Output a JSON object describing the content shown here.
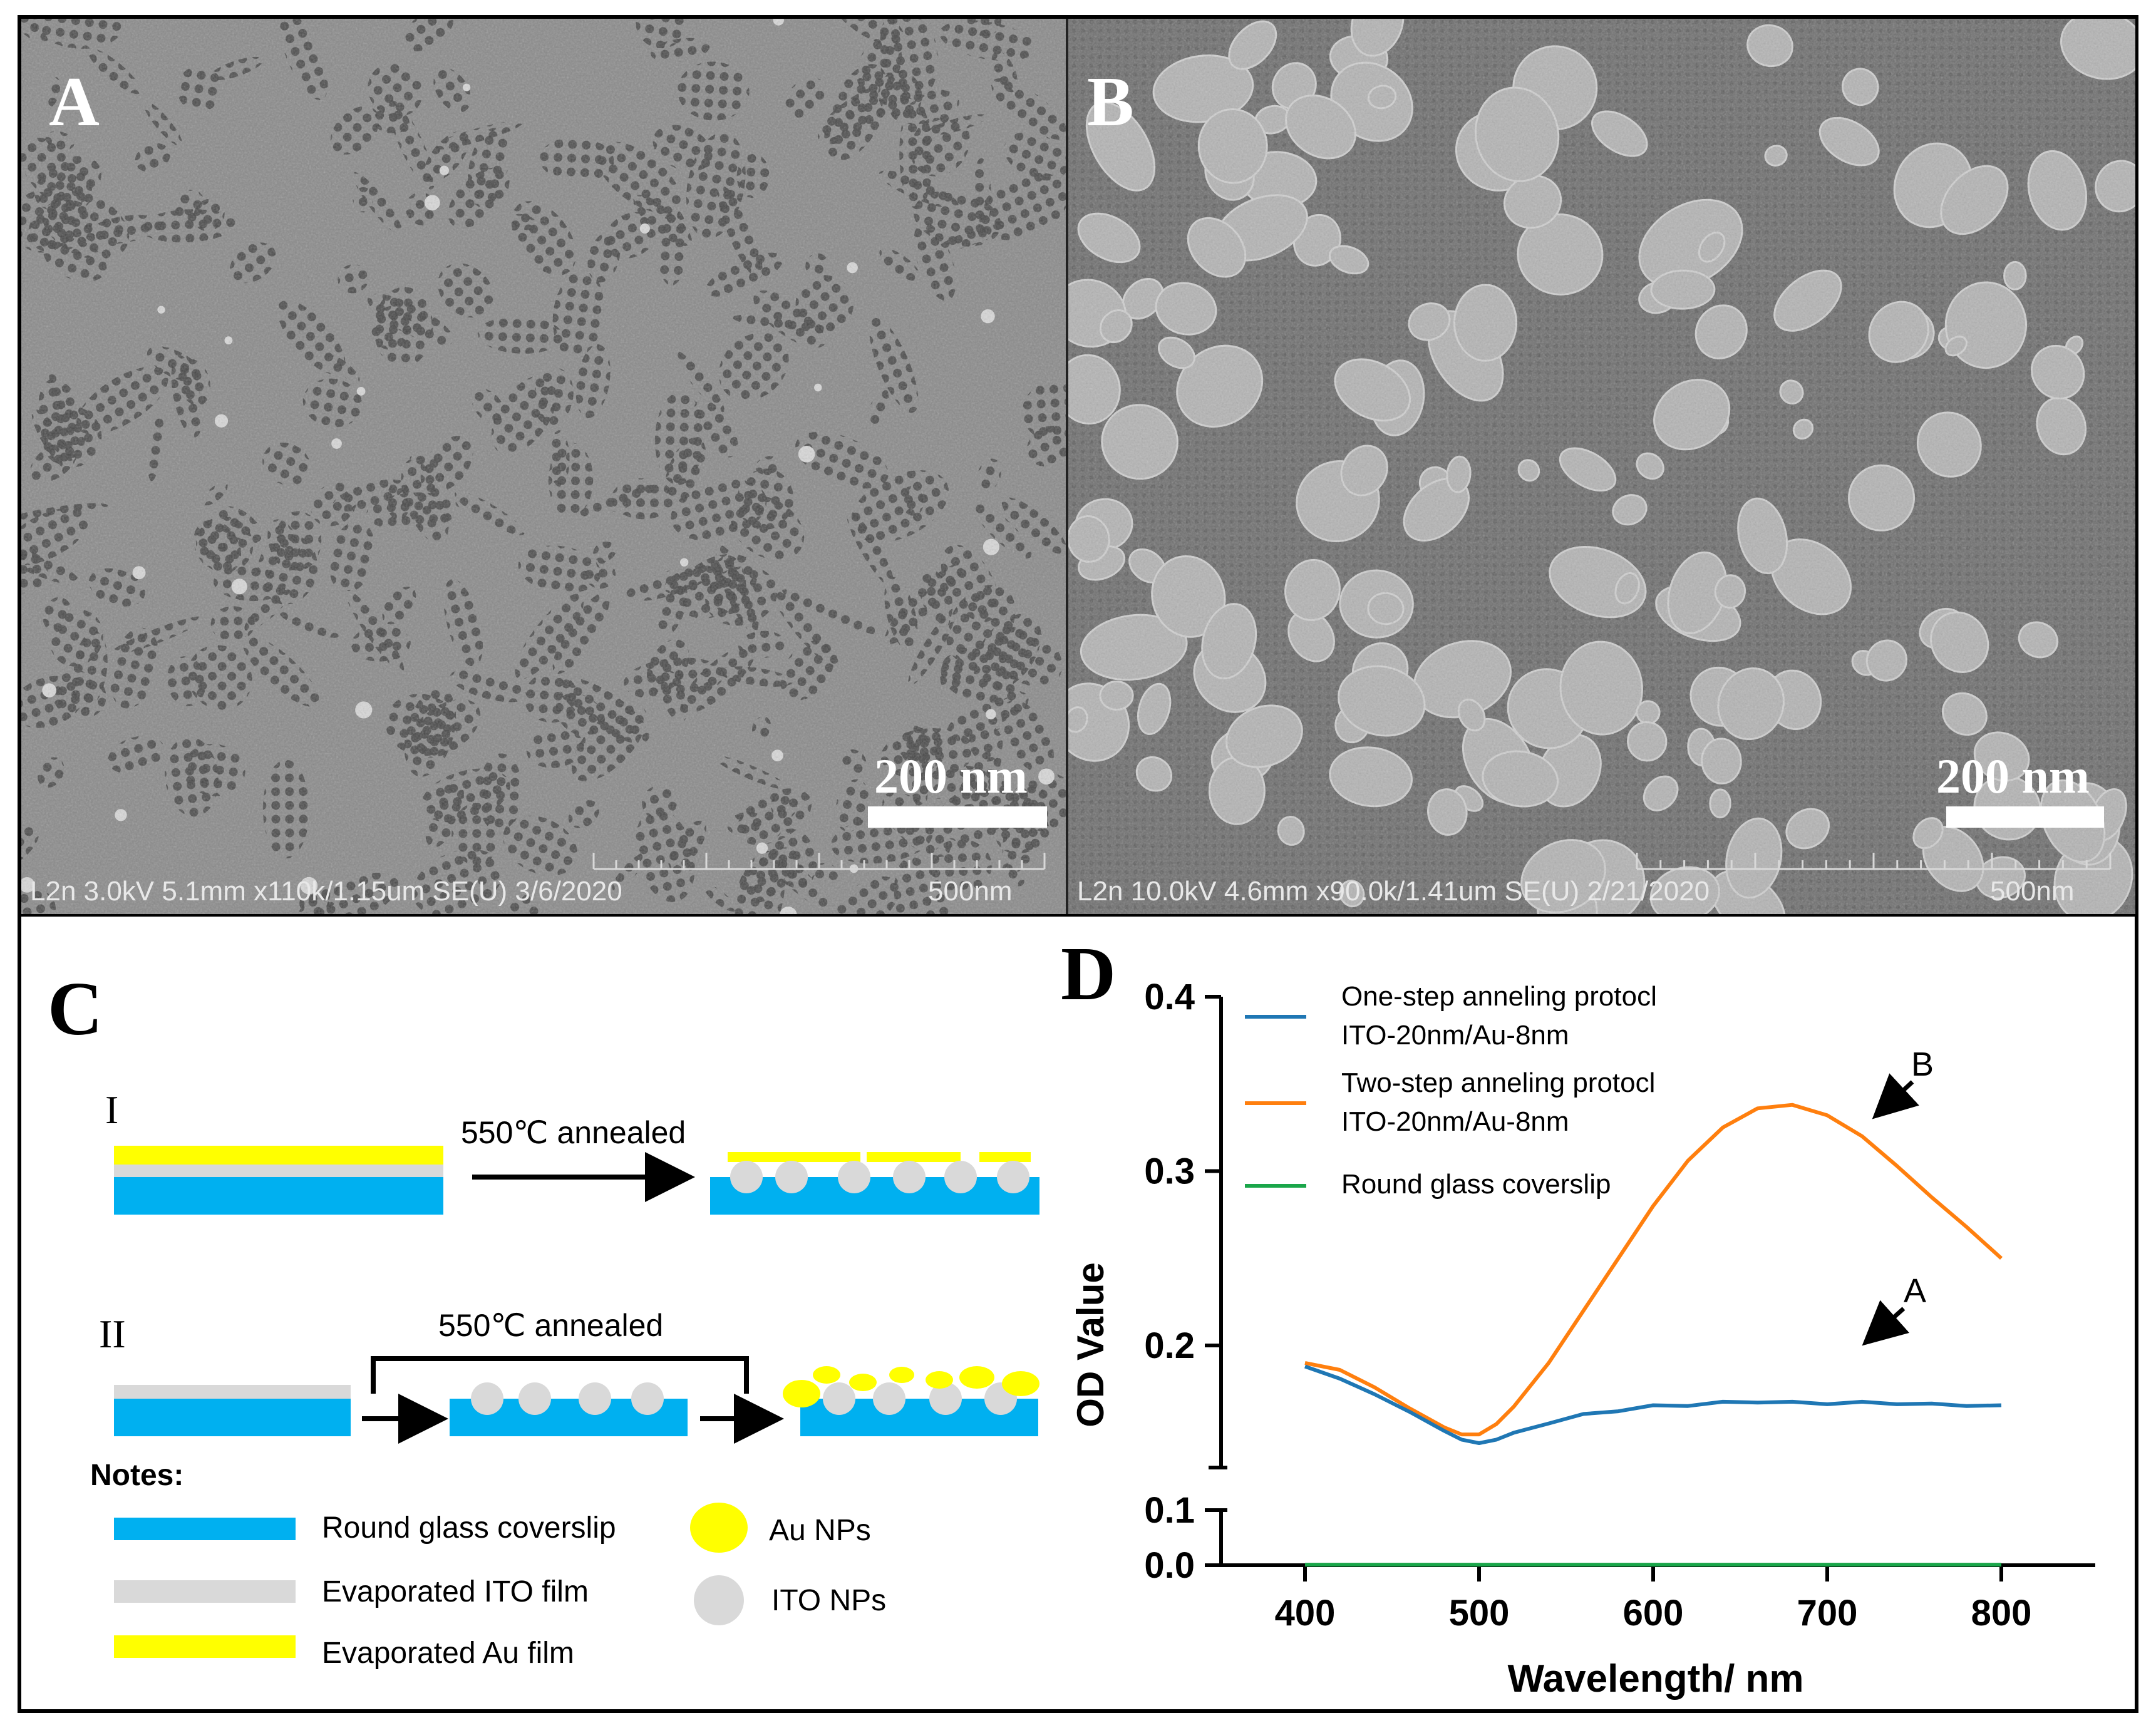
{
  "panels": {
    "A": {
      "letter": "A",
      "scale_label": "200 nm",
      "info_bar": "L2n 3.0kV 5.1mm x110k/1.15um SE(U) 3/6/2020",
      "info_scale": "500nm"
    },
    "B": {
      "letter": "B",
      "scale_label": "200 nm",
      "info_bar": "L2n 10.0kV 4.6mm x90.0k/1.41um SE(U) 2/21/2020",
      "info_scale": "500nm"
    },
    "C": {
      "letter": "C",
      "roman_1": "I",
      "roman_2": "II",
      "step1_label": "550℃ annealed",
      "step2_label": "550℃ annealed",
      "notes_title": "Notes:",
      "legend": [
        {
          "label": "Round glass coverslip",
          "color": "#00b0f0"
        },
        {
          "label": "Evaporated ITO film",
          "color": "#d9d9d9"
        },
        {
          "label": "Evaporated Au film",
          "color": "#ffff00"
        },
        {
          "label": "Au NPs",
          "color": "#ffff00"
        },
        {
          "label": "ITO NPs",
          "color": "#d9d9d9"
        }
      ]
    },
    "D": {
      "letter": "D",
      "annotation_A": "A",
      "annotation_B": "B"
    }
  },
  "colors": {
    "glass": "#00b0f0",
    "ito": "#d9d9d9",
    "au": "#ffff00",
    "series_one_step": "#1f77b4",
    "series_two_step": "#ff7f0e",
    "series_glass": "#1aa64a"
  },
  "chart_data": {
    "type": "line",
    "title": "",
    "xlabel": "Wavelength/ nm",
    "ylabel": "OD Value",
    "xlim": [
      400,
      800
    ],
    "ylim": [
      0,
      0.4
    ],
    "y_axis_break": [
      0.1,
      0.13
    ],
    "x_ticks": [
      "400",
      "500",
      "600",
      "700",
      "800"
    ],
    "y_ticks_upper": [
      "0.2",
      "0.3",
      "0.4"
    ],
    "y_ticks_lower": [
      "0.0",
      "0.1"
    ],
    "legend_position": "top-left",
    "series": [
      {
        "name": "One-step anneling protocl ITO-20nm/Au-8nm",
        "name_line1": "One-step anneling protocl",
        "name_line2": "ITO-20nm/Au-8nm",
        "x": [
          400,
          420,
          440,
          460,
          480,
          490,
          500,
          510,
          520,
          540,
          560,
          580,
          600,
          620,
          640,
          660,
          680,
          700,
          720,
          740,
          760,
          780,
          800
        ],
        "y": [
          0.188,
          0.181,
          0.172,
          0.162,
          0.151,
          0.146,
          0.144,
          0.146,
          0.15,
          0.156,
          0.16,
          0.163,
          0.165,
          0.166,
          0.167,
          0.168,
          0.167,
          0.167,
          0.167,
          0.167,
          0.166,
          0.166,
          0.165
        ]
      },
      {
        "name": "Two-step anneling protocl ITO-20nm/Au-8nm",
        "name_line1": "Two-step anneling protocl",
        "name_line2": "ITO-20nm/Au-8nm",
        "x": [
          400,
          420,
          440,
          460,
          480,
          490,
          500,
          510,
          520,
          540,
          560,
          580,
          600,
          620,
          640,
          660,
          680,
          700,
          720,
          740,
          760,
          780,
          800
        ],
        "y": [
          0.19,
          0.186,
          0.176,
          0.164,
          0.153,
          0.149,
          0.149,
          0.155,
          0.165,
          0.19,
          0.22,
          0.25,
          0.28,
          0.306,
          0.325,
          0.336,
          0.338,
          0.332,
          0.32,
          0.303,
          0.285,
          0.268,
          0.25
        ]
      },
      {
        "name": "Round glass coverslip",
        "name_line1": "Round glass coverslip",
        "name_line2": "",
        "x": [
          400,
          500,
          600,
          700,
          800
        ],
        "y": [
          0.001,
          0.001,
          0.001,
          0.001,
          0.001
        ]
      }
    ]
  }
}
